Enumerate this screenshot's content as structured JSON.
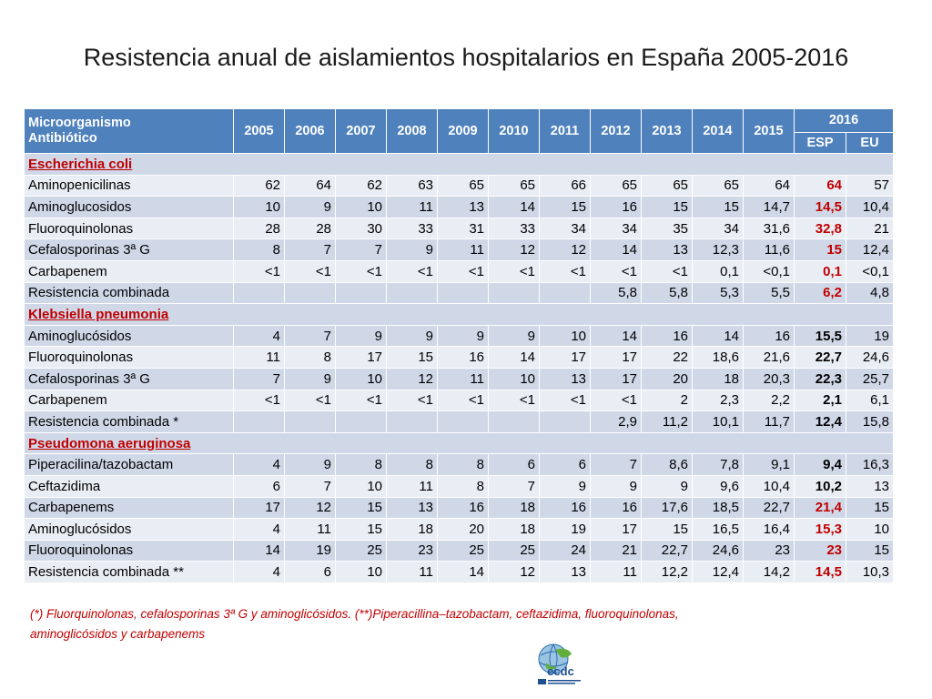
{
  "title": "Resistencia anual de aislamientos hospitalarios en España 2005-2016",
  "header": {
    "col0_line1": "Microorganismo",
    "col0_line2": "Antibiótico",
    "years": [
      "2005",
      "2006",
      "2007",
      "2008",
      "2009",
      "2010",
      "2011",
      "2012",
      "2013",
      "2014",
      "2015"
    ],
    "last_year": "2016",
    "sub_esp": "ESP",
    "sub_eu": "EU"
  },
  "sections": [
    {
      "organism": "Escherichia coli",
      "rows": [
        {
          "name": "Aminopenicilinas",
          "values": [
            "62",
            "64",
            "62",
            "63",
            "65",
            "65",
            "66",
            "65",
            "65",
            "65",
            "64"
          ],
          "esp": "64",
          "eu": "57",
          "esp_red": true
        },
        {
          "name": "Aminoglucosidos",
          "values": [
            "10",
            "9",
            "10",
            "11",
            "13",
            "14",
            "15",
            "16",
            "15",
            "15",
            "14,7"
          ],
          "esp": "14,5",
          "eu": "10,4",
          "esp_red": true
        },
        {
          "name": "Fluoroquinolonas",
          "values": [
            "28",
            "28",
            "30",
            "33",
            "31",
            "33",
            "34",
            "34",
            "35",
            "34",
            "31,6"
          ],
          "esp": "32,8",
          "eu": "21",
          "esp_red": true
        },
        {
          "name": "Cefalosporinas 3ª G",
          "values": [
            "8",
            "7",
            "7",
            "9",
            "11",
            "12",
            "12",
            "14",
            "13",
            "12,3",
            "11,6"
          ],
          "esp": "15",
          "eu": "12,4",
          "esp_red": true
        },
        {
          "name": "Carbapenem",
          "values": [
            "<1",
            "<1",
            "<1",
            "<1",
            "<1",
            "<1",
            "<1",
            "<1",
            "<1",
            "0,1",
            "<0,1"
          ],
          "esp": "0,1",
          "eu": "<0,1",
          "esp_red": true
        },
        {
          "name": "Resistencia combinada",
          "values": [
            "",
            "",
            "",
            "",
            "",
            "",
            "",
            "5,8",
            "5,8",
            "5,3",
            "5,5"
          ],
          "esp": "6,2",
          "eu": "4,8",
          "esp_red": true
        }
      ]
    },
    {
      "organism": "Klebsiella pneumonia",
      "rows": [
        {
          "name": "Aminoglucósidos",
          "values": [
            "4",
            "7",
            "9",
            "9",
            "9",
            "9",
            "10",
            "14",
            "16",
            "14",
            "16"
          ],
          "esp": "15,5",
          "eu": "19",
          "esp_red": false
        },
        {
          "name": "Fluoroquinolonas",
          "values": [
            "11",
            "8",
            "17",
            "15",
            "16",
            "14",
            "17",
            "17",
            "22",
            "18,6",
            "21,6"
          ],
          "esp": "22,7",
          "eu": "24,6",
          "esp_red": false
        },
        {
          "name": "Cefalosporinas 3ª G",
          "values": [
            "7",
            "9",
            "10",
            "12",
            "11",
            "10",
            "13",
            "17",
            "20",
            "18",
            "20,3"
          ],
          "esp": "22,3",
          "eu": "25,7",
          "esp_red": false
        },
        {
          "name": "Carbapenem",
          "values": [
            "<1",
            "<1",
            "<1",
            "<1",
            "<1",
            "<1",
            "<1",
            "<1",
            "2",
            "2,3",
            "2,2"
          ],
          "esp": "2,1",
          "eu": "6,1",
          "esp_red": false
        },
        {
          "name": "Resistencia combinada *",
          "values": [
            "",
            "",
            "",
            "",
            "",
            "",
            "",
            "2,9",
            "11,2",
            "10,1",
            "11,7"
          ],
          "esp": "12,4",
          "eu": "15,8",
          "esp_red": false
        }
      ]
    },
    {
      "organism": "Pseudomona aeruginosa",
      "rows": [
        {
          "name": "Piperacilina/tazobactam",
          "values": [
            "4",
            "9",
            "8",
            "8",
            "8",
            "6",
            "6",
            "7",
            "8,6",
            "7,8",
            "9,1"
          ],
          "esp": "9,4",
          "eu": "16,3",
          "esp_red": false
        },
        {
          "name": "Ceftazidima",
          "values": [
            "6",
            "7",
            "10",
            "11",
            "8",
            "7",
            "9",
            "9",
            "9",
            "9,6",
            "10,4"
          ],
          "esp": "10,2",
          "eu": "13",
          "esp_red": false
        },
        {
          "name": "Carbapenems",
          "values": [
            "17",
            "12",
            "15",
            "13",
            "16",
            "18",
            "16",
            "16",
            "17,6",
            "18,5",
            "22,7"
          ],
          "esp": "21,4",
          "eu": "15",
          "esp_red": true
        },
        {
          "name": "Aminoglucósidos",
          "values": [
            "4",
            "11",
            "15",
            "18",
            "20",
            "18",
            "19",
            "17",
            "15",
            "16,5",
            "16,4"
          ],
          "esp": "15,3",
          "eu": "10",
          "esp_red": true
        },
        {
          "name": "Fluoroquinolonas",
          "values": [
            "14",
            "19",
            "25",
            "23",
            "25",
            "25",
            "24",
            "21",
            "22,7",
            "24,6",
            "23"
          ],
          "esp": "23",
          "eu": "15",
          "esp_red": true
        },
        {
          "name": "Resistencia combinada **",
          "values": [
            "4",
            "6",
            "10",
            "11",
            "14",
            "12",
            "13",
            "11",
            "12,2",
            "12,4",
            "14,2"
          ],
          "esp": "14,5",
          "eu": "10,3",
          "esp_red": true
        }
      ]
    }
  ],
  "footnote_line1": "(*) Fluorquinolonas, cefalosporinas 3ª G y aminoglicósidos. (**)Piperacillina–tazobactam, ceftazidima, fluoroquinolonas,",
  "footnote_line2": "aminoglicósidos y  carbapenems",
  "logo_text": "ecdc",
  "colors": {
    "header": "#4f81bd",
    "row_dark": "#d0d8e8",
    "row_light": "#e9edf4",
    "accent_red": "#c00000"
  }
}
